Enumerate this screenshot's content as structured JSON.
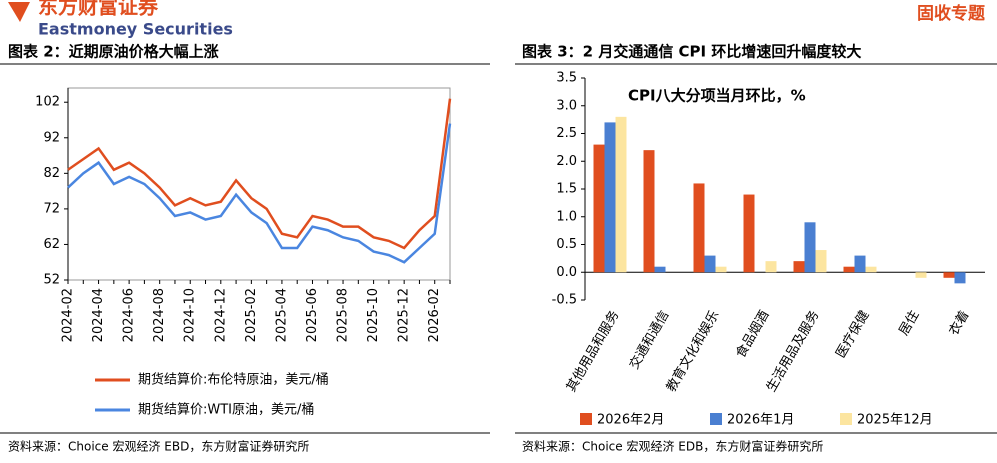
{
  "header": {
    "logo": "东方财富证券",
    "logo_en": "Eastmoney Securities",
    "tag": "固收专题"
  },
  "chart_data": [
    {
      "type": "line",
      "title": "图表 2：近期原油价格大幅上涨",
      "source": "资料来源：Choice 宏观经济 EBD，东方财富证券研究所",
      "categories": [
        "2024-02",
        null,
        "2024-04",
        null,
        "2024-06",
        null,
        "2024-08",
        null,
        "2024-10",
        null,
        "2024-12",
        null,
        "2025-02",
        null,
        "2025-04",
        null,
        "2025-06",
        null,
        "2025-08",
        null,
        "2025-10",
        null,
        "2025-12",
        null,
        "2026-02",
        null
      ],
      "series": [
        {
          "name": "期货结算价:布伦特原油，美元/桶",
          "color": "#e04e1f",
          "values": [
            83,
            86,
            89,
            83,
            85,
            82,
            78,
            73,
            75,
            73,
            74,
            80,
            75,
            72,
            65,
            64,
            70,
            69,
            67,
            67,
            64,
            63,
            61,
            66,
            70,
            103
          ]
        },
        {
          "name": "期货结算价:WTI原油，美元/桶",
          "color": "#4a86e0",
          "values": [
            78,
            82,
            85,
            79,
            81,
            79,
            75,
            70,
            71,
            69,
            70,
            76,
            71,
            68,
            61,
            61,
            67,
            66,
            64,
            63,
            60,
            59,
            57,
            61,
            65,
            96
          ]
        }
      ],
      "ylim": [
        52,
        106
      ],
      "yticks": [
        52,
        62,
        72,
        82,
        92,
        102
      ]
    },
    {
      "type": "bar",
      "title": "图表 3：2 月交通通信 CPI 环比增速回升幅度较大",
      "source": "资料来源：Choice 宏观经济 EDB，东方财富证券研究所",
      "annotation": "CPI八大分项当月环比，%",
      "categories": [
        "其他用品和服务",
        "交通和通信",
        "教育文化和娱乐",
        "食品烟酒",
        "生活用品及服务",
        "医疗保健",
        "居住",
        "衣着"
      ],
      "series": [
        {
          "name": "2026年2月",
          "color": "#e04e1f",
          "values": [
            2.3,
            2.2,
            1.6,
            1.4,
            0.2,
            0.1,
            0,
            -0.1
          ]
        },
        {
          "name": "2026年1月",
          "color": "#4a7fd1",
          "values": [
            2.7,
            0.1,
            0.3,
            0,
            0.9,
            0.3,
            0,
            -0.2
          ]
        },
        {
          "name": "2025年12月",
          "color": "#fce5a0",
          "values": [
            2.8,
            0,
            0.1,
            0.2,
            0.4,
            0.1,
            -0.1,
            0
          ]
        }
      ],
      "ylim": [
        -0.5,
        3.5
      ],
      "yticks": [
        -0.5,
        {
          "value": 0,
          "label": "0.0"
        },
        0.5,
        {
          "value": 1,
          "label": "1.0"
        },
        1.5,
        {
          "value": 2,
          "label": "2.0"
        },
        2.5,
        {
          "value": 3,
          "label": "3.0"
        },
        3.5
      ]
    }
  ]
}
